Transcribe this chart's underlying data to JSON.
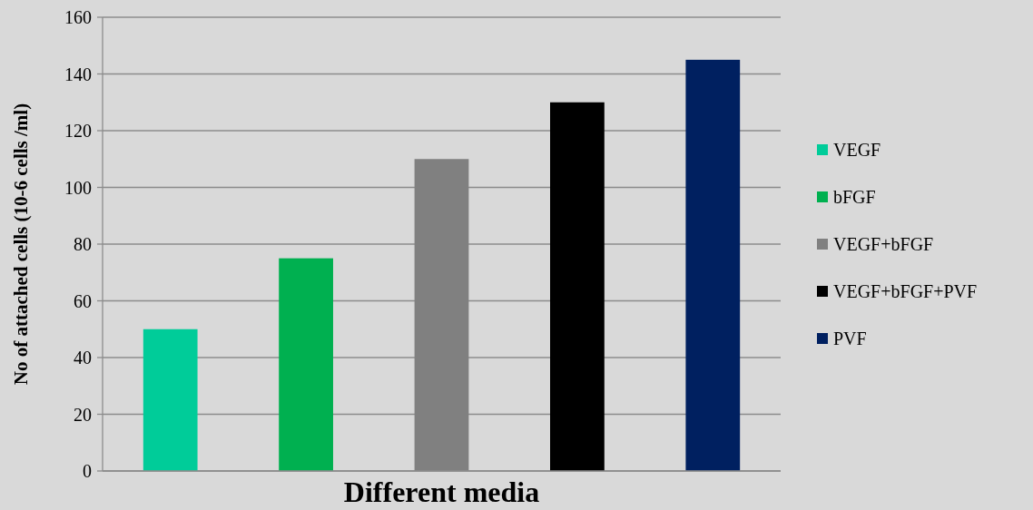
{
  "chart_data": {
    "type": "bar",
    "ylabel": "No of attached cells (10-6 cells /ml)",
    "xlabel": "Different media",
    "categories": [
      null
    ],
    "series": [
      {
        "name": "VEGF",
        "color": "#00cc99",
        "values": [
          50
        ]
      },
      {
        "name": "bFGF",
        "color": "#00b050",
        "values": [
          75
        ]
      },
      {
        "name": "VEGF+bFGF",
        "color": "#808080",
        "values": [
          110
        ]
      },
      {
        "name": "VEGF+bFGF+PVF",
        "color": "#000000",
        "values": [
          130
        ]
      },
      {
        "name": "PVF",
        "color": "#002060",
        "values": [
          145
        ]
      }
    ],
    "ylim": [
      0,
      160
    ],
    "yticks": [
      0,
      20,
      40,
      60,
      80,
      100,
      120,
      140,
      160
    ],
    "grid": "y",
    "legend": "right"
  }
}
